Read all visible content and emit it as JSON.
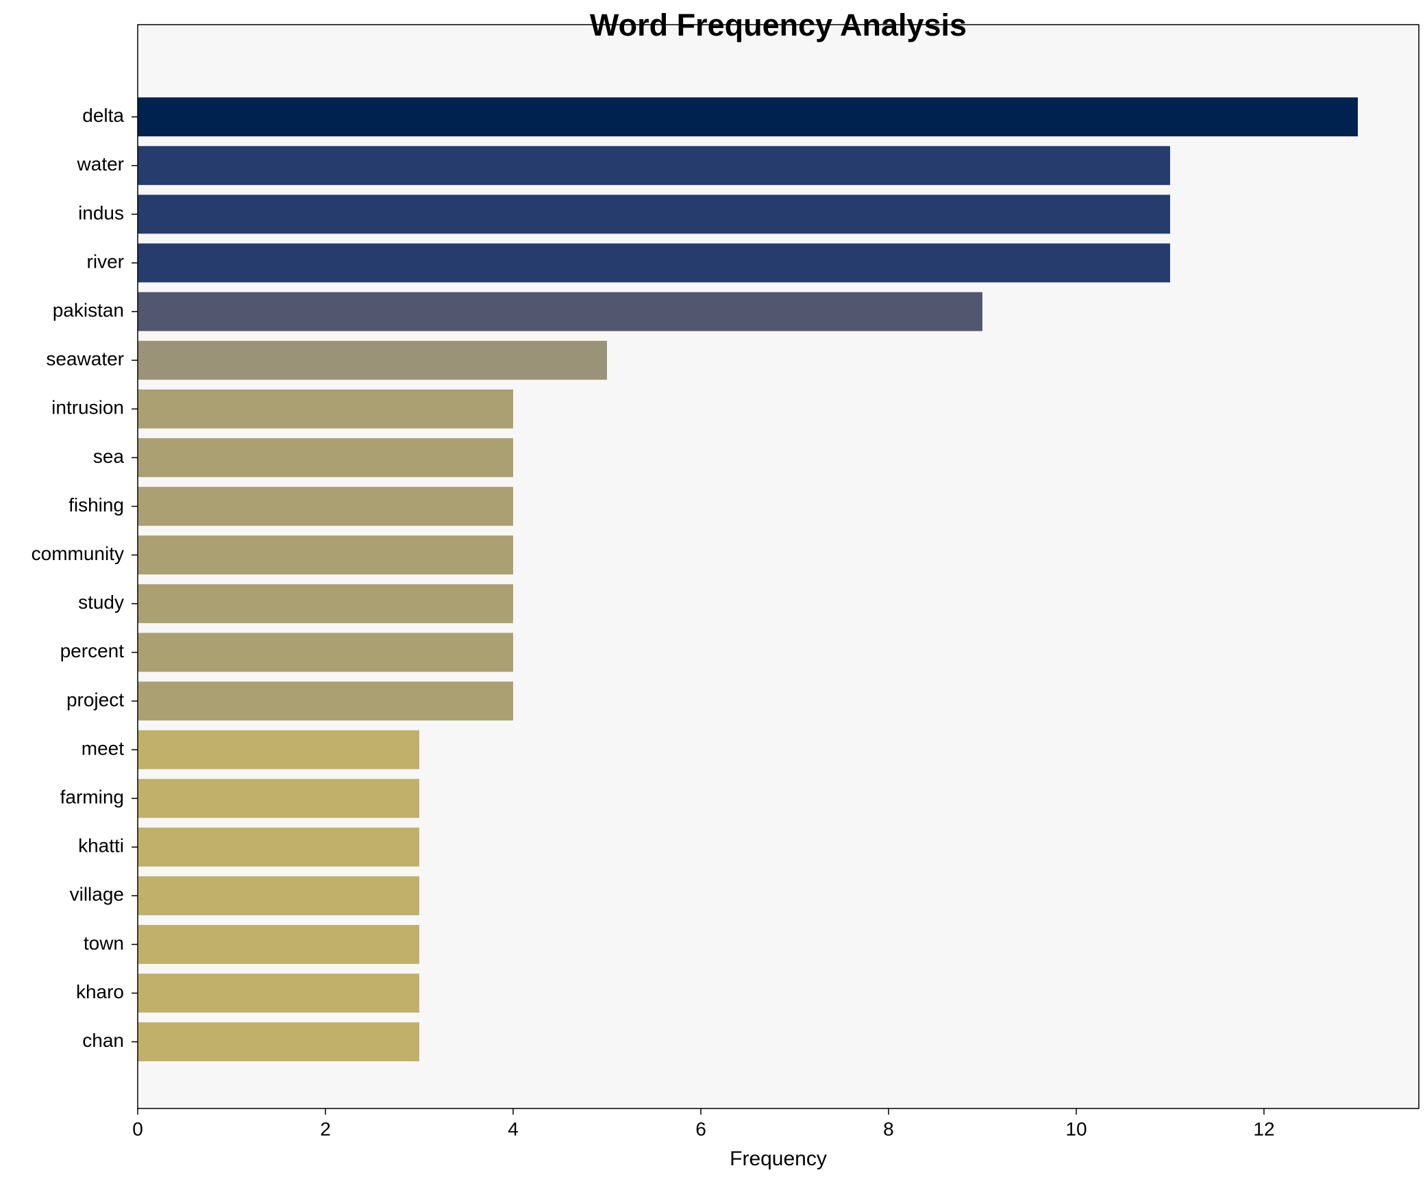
{
  "chart_data": {
    "type": "barh",
    "title": "Word Frequency Analysis",
    "xlabel": "Frequency",
    "categories": [
      "delta",
      "water",
      "indus",
      "river",
      "pakistan",
      "seawater",
      "intrusion",
      "sea",
      "fishing",
      "community",
      "study",
      "percent",
      "project",
      "meet",
      "farming",
      "khatti",
      "village",
      "town",
      "kharo",
      "chan"
    ],
    "values": [
      13,
      11,
      11,
      11,
      9,
      5,
      4,
      4,
      4,
      4,
      4,
      4,
      4,
      3,
      3,
      3,
      3,
      3,
      3,
      3
    ],
    "colors": [
      "#00224e",
      "#263c6c",
      "#263c6c",
      "#263c6c",
      "#52566e",
      "#9b9377",
      "#aba072",
      "#aba072",
      "#aba072",
      "#aba072",
      "#aba072",
      "#aba072",
      "#aba072",
      "#c0b06a",
      "#c0b06a",
      "#c0b06a",
      "#c0b06a",
      "#c0b06a",
      "#c0b06a",
      "#c0b06a"
    ],
    "xlim": [
      0,
      13.65
    ],
    "xticks": [
      0,
      2,
      4,
      6,
      8,
      10,
      12
    ]
  }
}
